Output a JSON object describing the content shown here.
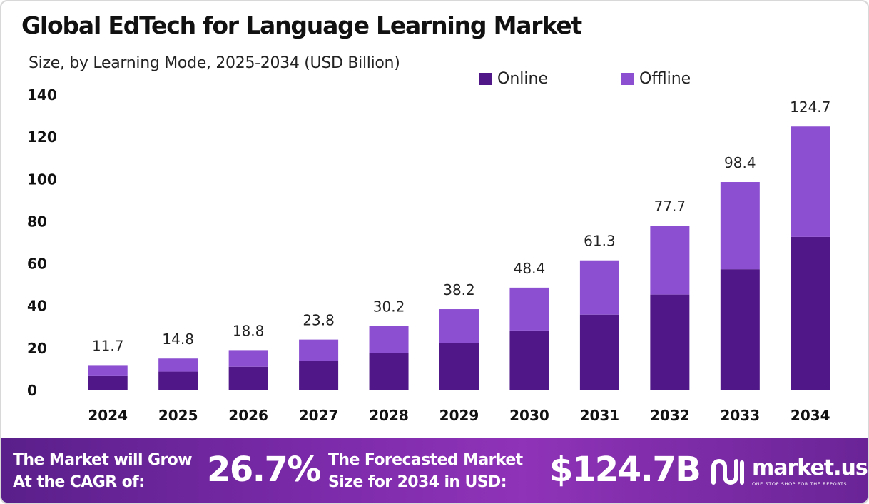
{
  "title": "Global EdTech for Language Learning Market",
  "subtitle": "Size, by Learning Mode, 2025-2034 (USD Billion)",
  "colors": {
    "online": "#4f1787",
    "offline": "#8c4fd1",
    "banner": "#7a2aa8"
  },
  "chart_data": {
    "type": "bar",
    "stacked": true,
    "categories": [
      "2024",
      "2025",
      "2026",
      "2027",
      "2028",
      "2029",
      "2030",
      "2031",
      "2032",
      "2033",
      "2034"
    ],
    "series": [
      {
        "name": "Online",
        "values": [
          6.8,
          8.6,
          10.9,
          13.8,
          17.5,
          22.2,
          28.1,
          35.6,
          45.1,
          57.1,
          72.4
        ]
      },
      {
        "name": "Offline",
        "values": [
          4.9,
          6.2,
          7.9,
          10.0,
          12.7,
          16.0,
          20.3,
          25.7,
          32.6,
          41.3,
          52.3
        ]
      }
    ],
    "totals": [
      "11.7",
      "14.8",
      "18.8",
      "23.8",
      "30.2",
      "38.2",
      "48.4",
      "61.3",
      "77.7",
      "98.4",
      "124.7"
    ],
    "yticks": [
      "0",
      "20",
      "40",
      "60",
      "80",
      "100",
      "120",
      "140"
    ],
    "ylim": [
      0,
      140
    ],
    "grid": false,
    "legend": "top-right"
  },
  "banner": {
    "cagr_label_line1": "The Market will Grow",
    "cagr_label_line2": "At the CAGR of:",
    "cagr_value": "26.7%",
    "forecast_label_line1": "The Forecasted Market",
    "forecast_label_line2": "Size for 2034 in USD:",
    "forecast_value": "$124.7B",
    "logo_name": "market.us",
    "logo_tagline": "ONE STOP SHOP FOR THE REPORTS",
    "logo_icon": "market-us-logo-icon"
  }
}
